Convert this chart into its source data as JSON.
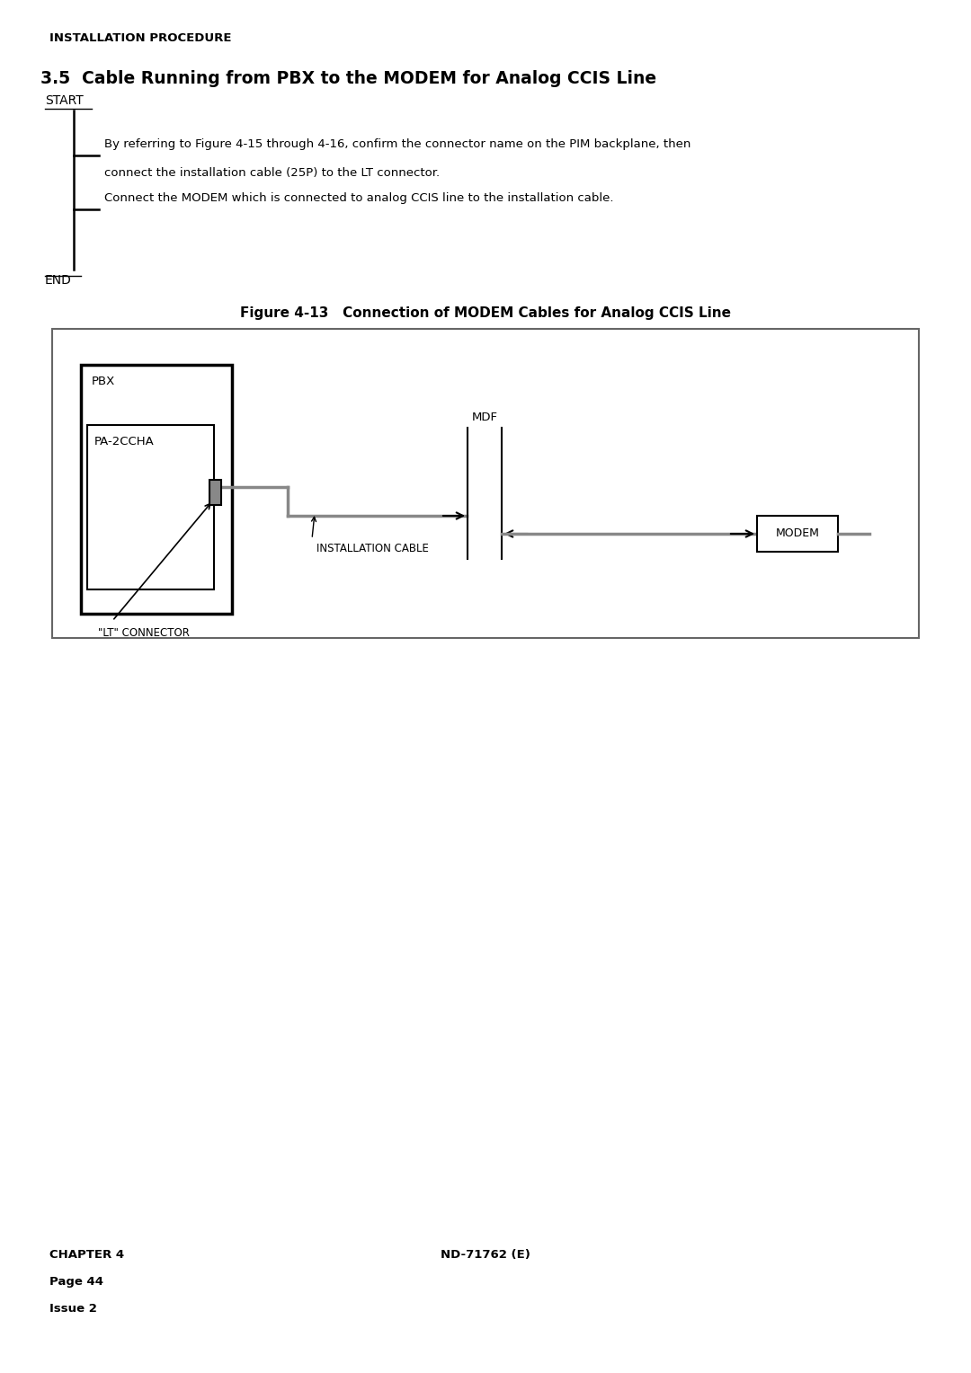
{
  "page_title": "INSTALLATION PROCEDURE",
  "section_title": "3.5  Cable Running from PBX to the MODEM for Analog CCIS Line",
  "start_label": "START",
  "end_label": "END",
  "step1_line1": "By referring to Figure 4-15 through 4-16, confirm the connector name on the PIM backplane, then",
  "step1_line2": "connect the installation cable (25P) to the LT connector.",
  "step2": "Connect the MODEM which is connected to analog CCIS line to the installation cable.",
  "figure_title": "Figure 4-13   Connection of MODEM Cables for Analog CCIS Line",
  "pbx_label": "PBX",
  "pa2ccha_label": "PA-2CCHA",
  "lt_connector_label": "\"LT\" CONNECTOR",
  "mdf_label": "MDF",
  "installation_cable_label": "INSTALLATION CABLE",
  "modem_label": "MODEM",
  "footer_left_line1": "CHAPTER 4",
  "footer_left_line2": "Page 44",
  "footer_left_line3": "Issue 2",
  "footer_right": "ND-71762 (E)",
  "bg_color": "#ffffff"
}
